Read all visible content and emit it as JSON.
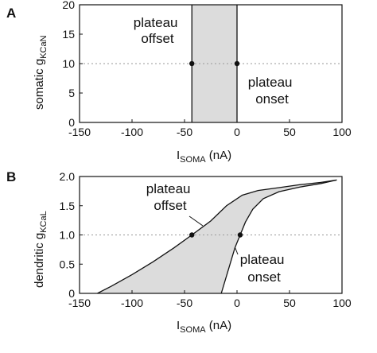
{
  "chart_data": [
    {
      "panel": "A",
      "type": "line",
      "xlabel": {
        "main": "I",
        "sub": "SOMA",
        "unit": " (nA)"
      },
      "ylabel": {
        "main": "somatic g",
        "sub": "KCaN"
      },
      "xlim": [
        -150,
        100
      ],
      "ylim": [
        0,
        20
      ],
      "xticks": [
        -150,
        -100,
        -50,
        0,
        50,
        100
      ],
      "yticks": [
        0,
        5,
        10,
        15,
        20
      ],
      "reference_line_y": 10,
      "shaded_region_x": [
        -43,
        0
      ],
      "series": [
        {
          "x": [
            -43,
            -43
          ],
          "y": [
            0,
            20
          ]
        },
        {
          "x": [
            0,
            0
          ],
          "y": [
            0,
            20
          ]
        }
      ],
      "points": [
        {
          "x": -43,
          "y": 10
        },
        {
          "x": 0,
          "y": 10
        }
      ],
      "annotations": [
        {
          "lines": [
            "plateau",
            "offset"
          ]
        },
        {
          "lines": [
            "plateau",
            "onset"
          ]
        }
      ]
    },
    {
      "panel": "B",
      "type": "line",
      "xlabel": {
        "main": "I",
        "sub": "SOMA",
        "unit": " (nA)"
      },
      "ylabel": {
        "main": "dendritic g",
        "sub": "KCaL"
      },
      "xlim": [
        -150,
        100
      ],
      "ylim": [
        0,
        2.0
      ],
      "xticks": [
        -150,
        -100,
        -50,
        0,
        50,
        100
      ],
      "yticks": [
        0,
        0.5,
        1.0,
        1.5,
        2.0
      ],
      "ytick_labels": [
        "0",
        "0.5",
        "1.0",
        "1.5",
        "2.0"
      ],
      "reference_line_y": 1.0,
      "series": [
        {
          "x": [
            -133,
            -120,
            -100,
            -80,
            -60,
            -43,
            -25,
            -10,
            5,
            20,
            40,
            60,
            80,
            95
          ],
          "y": [
            0,
            0.12,
            0.32,
            0.54,
            0.78,
            1.0,
            1.24,
            1.5,
            1.68,
            1.76,
            1.81,
            1.86,
            1.9,
            1.94
          ]
        },
        {
          "x": [
            -15,
            -8,
            -2,
            3,
            8,
            15,
            25,
            40,
            60,
            80,
            95
          ],
          "y": [
            0,
            0.42,
            0.78,
            1.0,
            1.22,
            1.44,
            1.62,
            1.74,
            1.82,
            1.88,
            1.94
          ]
        }
      ],
      "points": [
        {
          "x": -43,
          "y": 1.0
        },
        {
          "x": 3,
          "y": 1.0
        }
      ],
      "annotations": [
        {
          "lines": [
            "plateau",
            "offset"
          ]
        },
        {
          "lines": [
            "plateau",
            "onset"
          ]
        }
      ]
    }
  ]
}
